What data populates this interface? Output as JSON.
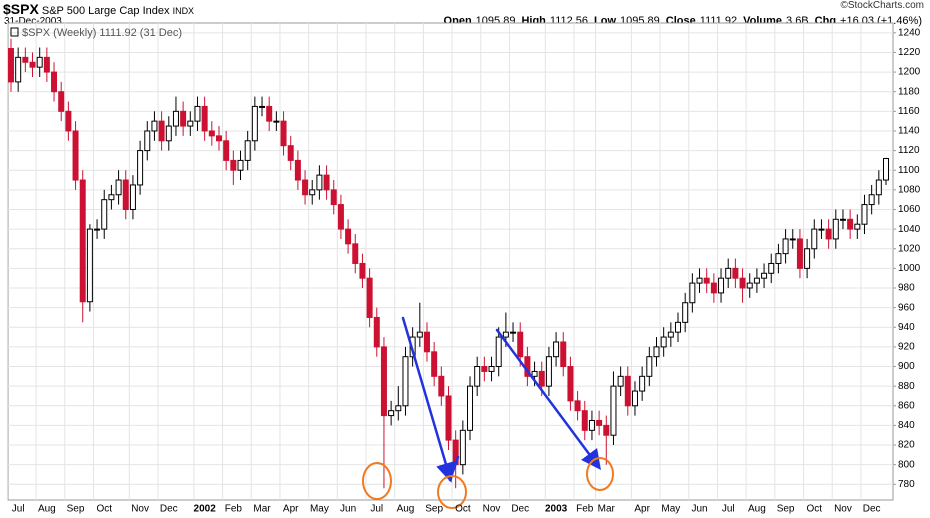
{
  "chart_data": {
    "type": "candlestick",
    "title": "$SPX",
    "subtitle": "S&P 500 Large Cap Index",
    "exchange": "INDX",
    "date": "31-Dec-2003",
    "credit": "©StockCharts.com",
    "legend": "$SPX (Weekly) 1111.92 (31 Dec)",
    "quote": [
      {
        "label": "Open",
        "value": "1095.89"
      },
      {
        "label": "High",
        "value": "1112.56"
      },
      {
        "label": "Low",
        "value": "1095.89"
      },
      {
        "label": "Close",
        "value": "1111.92"
      },
      {
        "label": "Volume",
        "value": "3.6B"
      },
      {
        "label": "Chg",
        "value": "+16.03 (+1.46%)"
      }
    ],
    "up_color": "#000000",
    "down_color": "#cc1133",
    "categories": [
      "Jul",
      null,
      null,
      null,
      "Aug",
      null,
      null,
      null,
      "Sep",
      null,
      null,
      null,
      "Oct",
      null,
      null,
      null,
      null,
      "Nov",
      null,
      null,
      null,
      "Dec",
      null,
      null,
      null,
      null,
      "2002",
      null,
      null,
      null,
      "Feb",
      null,
      null,
      null,
      "Mar",
      null,
      null,
      null,
      "Apr",
      null,
      null,
      null,
      "May",
      null,
      null,
      null,
      "Jun",
      null,
      null,
      null,
      "Jul",
      null,
      null,
      null,
      "Aug",
      null,
      null,
      null,
      "Sep",
      null,
      null,
      null,
      "Oct",
      null,
      null,
      null,
      "Nov",
      null,
      null,
      null,
      "Dec",
      null,
      null,
      null,
      null,
      "2003",
      null,
      null,
      null,
      "Feb",
      null,
      null,
      "Mar",
      null,
      null,
      null,
      null,
      "Apr",
      null,
      null,
      null,
      "May",
      null,
      null,
      null,
      "Jun",
      null,
      null,
      null,
      "Jul",
      null,
      null,
      null,
      "Aug",
      null,
      null,
      null,
      "Sep",
      null,
      null,
      null,
      "Oct",
      null,
      null,
      null,
      "Nov",
      null,
      null,
      null,
      "Dec",
      null,
      null,
      null
    ],
    "open": [
      1224,
      1190,
      1215,
      1210,
      1205,
      1215,
      1200,
      1180,
      1160,
      1140,
      1090,
      966,
      1040,
      1040,
      1070,
      1075,
      1090,
      1060,
      1085,
      1120,
      1140,
      1150,
      1130,
      1145,
      1160,
      1145,
      1150,
      1165,
      1140,
      1135,
      1130,
      1110,
      1100,
      1110,
      1130,
      1165,
      1165,
      1150,
      1150,
      1125,
      1110,
      1090,
      1075,
      1080,
      1095,
      1080,
      1065,
      1040,
      1025,
      1005,
      990,
      950,
      920,
      850,
      855,
      860,
      910,
      930,
      935,
      915,
      890,
      870,
      825,
      800,
      835,
      880,
      900,
      895,
      900,
      930,
      935,
      935,
      910,
      890,
      895,
      880,
      910,
      925,
      900,
      865,
      855,
      835,
      845,
      840,
      830,
      880,
      890,
      860,
      875,
      890,
      910,
      920,
      930,
      935,
      945,
      965,
      985,
      990,
      985,
      975,
      990,
      1000,
      990,
      980,
      985,
      990,
      995,
      1005,
      1015,
      1030,
      1030,
      1000,
      1020,
      1040,
      1040,
      1030,
      1050,
      1050,
      1040,
      1045,
      1065,
      1075,
      1090
    ],
    "high": [
      1234,
      1225,
      1225,
      1220,
      1225,
      1225,
      1210,
      1190,
      1170,
      1150,
      1100,
      1045,
      1050,
      1080,
      1085,
      1100,
      1100,
      1095,
      1130,
      1150,
      1160,
      1160,
      1155,
      1175,
      1170,
      1160,
      1175,
      1175,
      1150,
      1145,
      1140,
      1120,
      1120,
      1140,
      1175,
      1175,
      1175,
      1160,
      1160,
      1135,
      1120,
      1100,
      1090,
      1105,
      1105,
      1090,
      1075,
      1050,
      1035,
      1015,
      1000,
      960,
      930,
      865,
      880,
      920,
      940,
      965,
      945,
      925,
      900,
      880,
      835,
      845,
      890,
      910,
      910,
      910,
      940,
      955,
      945,
      945,
      920,
      905,
      905,
      920,
      935,
      935,
      910,
      875,
      865,
      855,
      855,
      850,
      895,
      900,
      900,
      885,
      900,
      920,
      930,
      940,
      945,
      955,
      975,
      995,
      1000,
      1000,
      995,
      1000,
      1010,
      1010,
      1000,
      995,
      1000,
      1005,
      1015,
      1025,
      1040,
      1040,
      1040,
      1030,
      1050,
      1050,
      1050,
      1060,
      1060,
      1060,
      1055,
      1075,
      1085,
      1100,
      1112.56
    ],
    "low": [
      1180,
      1180,
      1200,
      1195,
      1195,
      1190,
      1170,
      1150,
      1130,
      1080,
      945,
      956,
      1030,
      1030,
      1060,
      1065,
      1050,
      1050,
      1075,
      1110,
      1130,
      1120,
      1120,
      1135,
      1135,
      1135,
      1140,
      1130,
      1125,
      1120,
      1100,
      1085,
      1090,
      1100,
      1120,
      1155,
      1140,
      1140,
      1115,
      1100,
      1080,
      1065,
      1065,
      1070,
      1070,
      1055,
      1030,
      1015,
      995,
      980,
      940,
      910,
      776,
      840,
      845,
      850,
      900,
      920,
      905,
      880,
      860,
      815,
      776,
      790,
      825,
      870,
      885,
      885,
      890,
      920,
      925,
      900,
      880,
      880,
      870,
      870,
      900,
      890,
      855,
      845,
      825,
      825,
      830,
      800,
      820,
      870,
      850,
      850,
      865,
      880,
      900,
      910,
      920,
      925,
      935,
      955,
      975,
      975,
      965,
      965,
      980,
      980,
      965,
      970,
      975,
      980,
      985,
      995,
      1005,
      1020,
      990,
      990,
      1010,
      1030,
      1020,
      1020,
      1040,
      1030,
      1030,
      1035,
      1055,
      1065,
      1085
    ],
    "close": [
      1190,
      1215,
      1210,
      1205,
      1215,
      1200,
      1180,
      1160,
      1140,
      1090,
      966,
      1040,
      1040,
      1070,
      1075,
      1090,
      1060,
      1085,
      1120,
      1140,
      1150,
      1130,
      1145,
      1160,
      1145,
      1150,
      1165,
      1140,
      1135,
      1130,
      1110,
      1100,
      1110,
      1130,
      1165,
      1165,
      1150,
      1150,
      1125,
      1110,
      1090,
      1075,
      1080,
      1095,
      1080,
      1065,
      1040,
      1025,
      1005,
      990,
      950,
      920,
      850,
      855,
      860,
      910,
      930,
      935,
      915,
      890,
      870,
      825,
      800,
      835,
      880,
      900,
      895,
      900,
      930,
      935,
      935,
      910,
      890,
      895,
      880,
      910,
      925,
      900,
      865,
      855,
      835,
      845,
      840,
      830,
      880,
      890,
      860,
      875,
      890,
      910,
      920,
      930,
      935,
      945,
      965,
      985,
      990,
      985,
      975,
      990,
      1000,
      990,
      980,
      985,
      990,
      995,
      1005,
      1015,
      1030,
      1030,
      1000,
      1020,
      1040,
      1040,
      1030,
      1050,
      1050,
      1040,
      1045,
      1065,
      1075,
      1090,
      1111.92
    ],
    "ylim": [
      764,
      1250
    ],
    "yticks": [
      780,
      800,
      820,
      840,
      860,
      880,
      900,
      920,
      940,
      960,
      980,
      1000,
      1020,
      1040,
      1060,
      1080,
      1100,
      1120,
      1140,
      1160,
      1180,
      1200,
      1220,
      1240
    ],
    "grid": true
  }
}
